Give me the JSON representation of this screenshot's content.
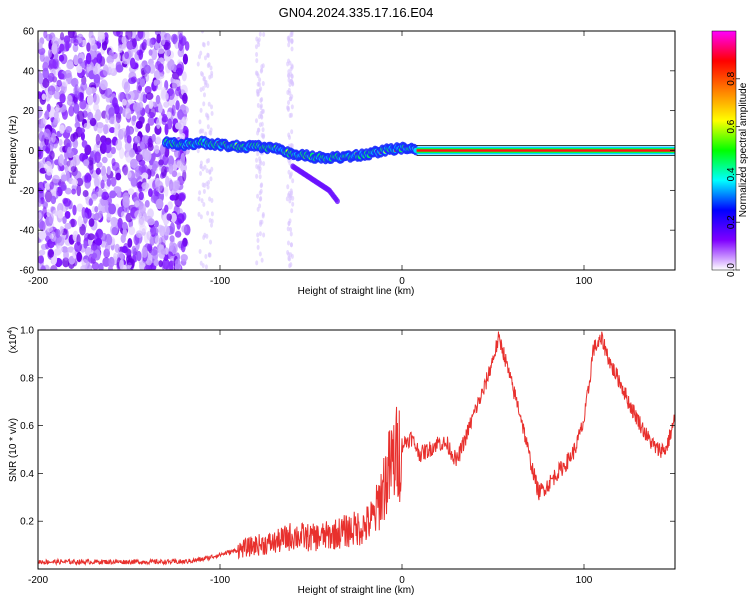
{
  "title": "GN04.2024.335.17.16.E04",
  "chart_data": [
    {
      "type": "heatmap",
      "xlabel": "Height of straight line (km)",
      "ylabel": "Frequency (Hz)",
      "xlim": [
        -200,
        150
      ],
      "ylim": [
        -60,
        60
      ],
      "xticks": [
        -200,
        -100,
        0,
        100
      ],
      "yticks": [
        60,
        40,
        20,
        0,
        -20,
        -40,
        -60
      ],
      "colorbar": {
        "label": "Normalized spectral amplitude",
        "range": [
          0,
          1
        ],
        "ticks": [
          "0.0",
          "0.2",
          "0.4",
          "0.6",
          "0.8"
        ],
        "colors": [
          "#ffffff",
          "#7f00ff",
          "#0000ff",
          "#00ffff",
          "#00ff00",
          "#ffff00",
          "#ff8000",
          "#ff0000",
          "#ff00ff"
        ]
      },
      "ridge": {
        "x": [
          -130,
          -120,
          -110,
          -100,
          -90,
          -80,
          -70,
          -60,
          -50,
          -40,
          -30,
          -20,
          -10,
          0,
          5,
          10,
          150
        ],
        "y": [
          4,
          3,
          4,
          3,
          2,
          2,
          1,
          -2,
          -3,
          -4,
          -3,
          -2,
          0,
          1,
          2,
          0,
          0
        ]
      },
      "branch": {
        "x": [
          -60,
          -50,
          -40,
          -35
        ],
        "y": [
          -8,
          -14,
          -20,
          -26
        ]
      }
    },
    {
      "type": "line",
      "xlabel": "Height of straight line (km)",
      "ylabel": "SNR (10 * v/v)",
      "yscale_label": "(x10",
      "yscale_exp": "4",
      "xlim": [
        -200,
        150
      ],
      "ylim": [
        0,
        1.0
      ],
      "xticks": [
        -200,
        -100,
        0,
        100
      ],
      "yticks": [
        "1.0",
        "0.8",
        "0.6",
        "0.4",
        "0.2"
      ],
      "color": "#e8302d",
      "series": [
        {
          "x": [
            -200,
            -180,
            -160,
            -140,
            -120,
            -110,
            -100,
            -90,
            -80,
            -70,
            -60,
            -50,
            -40,
            -30,
            -20,
            -15,
            -10,
            -5,
            0,
            5,
            10,
            15,
            20,
            25,
            30,
            35,
            40,
            45,
            50,
            53,
            55,
            60,
            65,
            70,
            75,
            80,
            85,
            90,
            95,
            100,
            103,
            105,
            110,
            115,
            120,
            125,
            130,
            135,
            140,
            145,
            150
          ],
          "y": [
            0.03,
            0.03,
            0.03,
            0.03,
            0.03,
            0.04,
            0.06,
            0.08,
            0.1,
            0.11,
            0.14,
            0.13,
            0.14,
            0.16,
            0.18,
            0.22,
            0.35,
            0.45,
            0.52,
            0.55,
            0.48,
            0.5,
            0.53,
            0.52,
            0.45,
            0.55,
            0.66,
            0.75,
            0.88,
            0.96,
            0.93,
            0.78,
            0.65,
            0.47,
            0.32,
            0.35,
            0.4,
            0.44,
            0.5,
            0.62,
            0.78,
            0.92,
            0.96,
            0.85,
            0.78,
            0.69,
            0.62,
            0.55,
            0.5,
            0.5,
            0.63
          ]
        }
      ]
    }
  ]
}
